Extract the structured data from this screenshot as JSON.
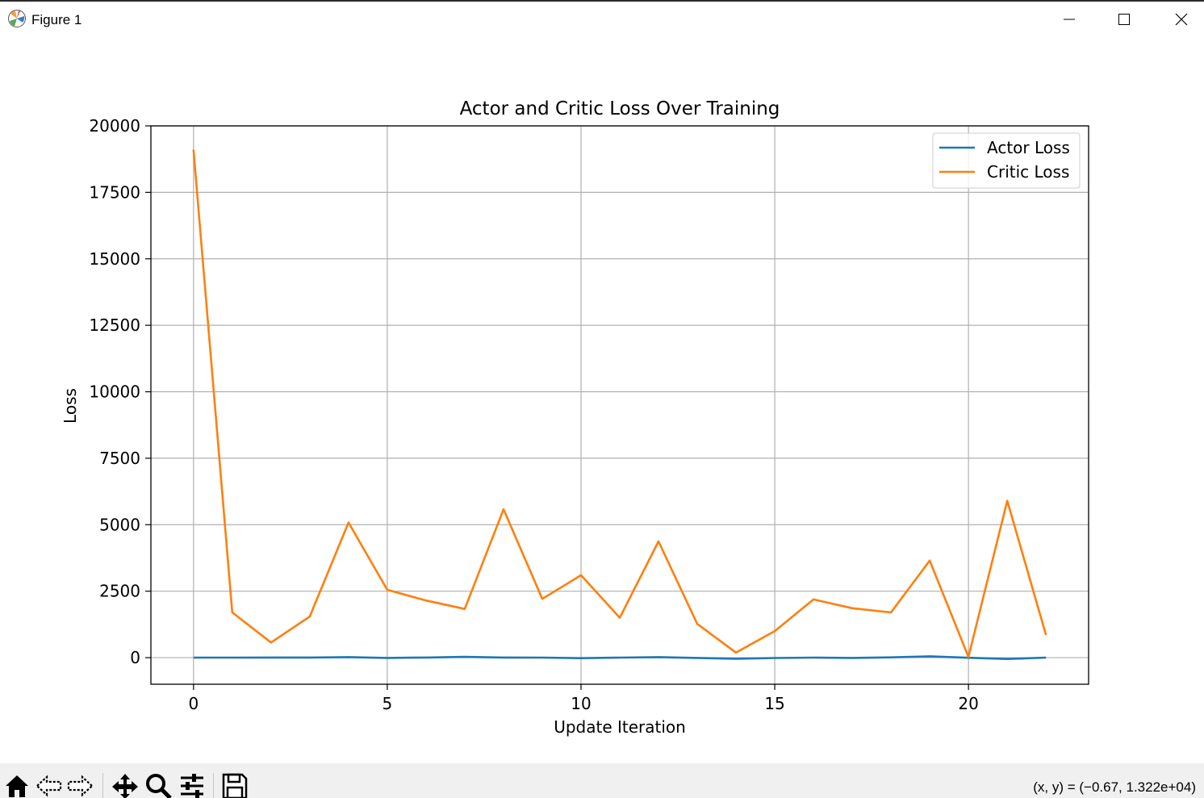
{
  "window": {
    "title": "Figure 1",
    "icon": "matplotlib-icon",
    "controls": [
      "minimize-icon",
      "maximize-icon",
      "close-icon"
    ]
  },
  "toolbar": {
    "buttons": [
      {
        "name": "home-icon",
        "label": "Home"
      },
      {
        "name": "back-icon",
        "label": "Back"
      },
      {
        "name": "forward-icon",
        "label": "Forward"
      },
      {
        "name": "pan-icon",
        "label": "Pan"
      },
      {
        "name": "zoom-icon",
        "label": "Zoom"
      },
      {
        "name": "configure-subplots-icon",
        "label": "Configure subplots"
      },
      {
        "name": "save-icon",
        "label": "Save"
      }
    ],
    "coordinates": "(x, y) = (−0.67, 1.322e+04)"
  },
  "chart_data": {
    "type": "line",
    "title": "Actor and Critic Loss Over Training",
    "xlabel": "Update Iteration",
    "ylabel": "Loss",
    "xlim": [
      -1.1,
      23.1
    ],
    "ylim": [
      -1000,
      20000
    ],
    "xticks": [
      0,
      5,
      10,
      15,
      20
    ],
    "yticks": [
      0,
      2500,
      5000,
      7500,
      10000,
      12500,
      15000,
      17500,
      20000
    ],
    "grid": true,
    "legend_position": "top-right",
    "x": [
      0,
      1,
      2,
      3,
      4,
      5,
      6,
      7,
      8,
      9,
      10,
      11,
      12,
      13,
      14,
      15,
      16,
      17,
      18,
      19,
      20,
      21,
      22
    ],
    "series": [
      {
        "name": "Actor Loss",
        "color": "#1f77b4",
        "values": [
          0,
          0,
          5,
          5,
          20,
          -10,
          5,
          30,
          5,
          0,
          -20,
          0,
          20,
          -10,
          -40,
          -15,
          0,
          -10,
          10,
          50,
          -5,
          -50,
          0
        ]
      },
      {
        "name": "Critic Loss",
        "color": "#ff7f0e",
        "values": [
          19100,
          1700,
          570,
          1550,
          5080,
          2550,
          2150,
          1830,
          5580,
          2210,
          3100,
          1500,
          4370,
          1270,
          190,
          1000,
          2190,
          1860,
          1700,
          3650,
          30,
          5900,
          850
        ]
      }
    ]
  }
}
